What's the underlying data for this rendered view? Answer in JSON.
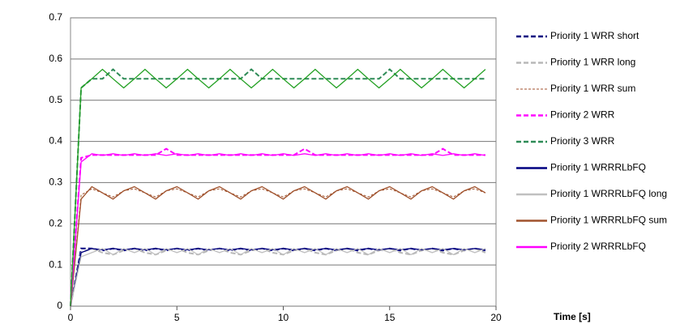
{
  "chart_data": {
    "type": "line",
    "x_label": "Time [s]",
    "x": [
      0,
      0.5,
      1,
      1.5,
      2,
      2.5,
      3,
      3.5,
      4,
      4.5,
      5,
      5.5,
      6,
      6.5,
      7,
      7.5,
      8,
      8.5,
      9,
      9.5,
      10,
      10.5,
      11,
      11.5,
      12,
      12.5,
      13,
      13.5,
      14,
      14.5,
      15,
      15.5,
      16,
      16.5,
      17,
      17.5,
      18,
      18.5,
      19,
      19.5
    ],
    "xlim": [
      0,
      20
    ],
    "xticks": [
      0,
      5,
      10,
      15,
      20
    ],
    "ylim": [
      0,
      0.7
    ],
    "yticks": [
      0,
      0.1,
      0.2,
      0.3,
      0.4,
      0.5,
      0.6,
      0.7
    ],
    "grid": true,
    "legend": "right",
    "series": [
      {
        "name": "Priority 1 WRR short",
        "color": "#000080",
        "dash": true,
        "values": [
          0,
          0.14,
          0.14,
          0.135,
          0.14,
          0.135,
          0.14,
          0.135,
          0.14,
          0.135,
          0.14,
          0.135,
          0.14,
          0.135,
          0.14,
          0.135,
          0.14,
          0.135,
          0.14,
          0.135,
          0.14,
          0.135,
          0.14,
          0.135,
          0.14,
          0.135,
          0.14,
          0.135,
          0.14,
          0.135,
          0.14,
          0.135,
          0.14,
          0.135,
          0.14,
          0.135,
          0.14,
          0.135,
          0.14,
          0.135
        ]
      },
      {
        "name": "Priority 1 WRR long",
        "color": "#b8b8b8",
        "dash": true,
        "values": [
          0,
          0.13,
          0.14,
          0.13,
          0.125,
          0.135,
          0.14,
          0.13,
          0.125,
          0.135,
          0.14,
          0.13,
          0.125,
          0.135,
          0.14,
          0.13,
          0.125,
          0.135,
          0.14,
          0.13,
          0.125,
          0.135,
          0.14,
          0.13,
          0.125,
          0.135,
          0.14,
          0.13,
          0.125,
          0.135,
          0.14,
          0.13,
          0.125,
          0.135,
          0.14,
          0.13,
          0.125,
          0.135,
          0.14,
          0.13
        ]
      },
      {
        "name": "Priority 1 WRR sum",
        "color": "#a0522d",
        "dash": true,
        "thin": true,
        "values": [
          0,
          0.27,
          0.285,
          0.275,
          0.265,
          0.28,
          0.285,
          0.275,
          0.265,
          0.28,
          0.285,
          0.275,
          0.265,
          0.28,
          0.285,
          0.275,
          0.265,
          0.28,
          0.285,
          0.275,
          0.265,
          0.28,
          0.285,
          0.275,
          0.265,
          0.28,
          0.285,
          0.275,
          0.265,
          0.28,
          0.285,
          0.275,
          0.265,
          0.28,
          0.285,
          0.275,
          0.265,
          0.28,
          0.285,
          0.275
        ]
      },
      {
        "name": "Priority 2 WRR",
        "color": "#ff00ff",
        "dash": true,
        "values": [
          0,
          0.36,
          0.367,
          0.367,
          0.367,
          0.367,
          0.367,
          0.367,
          0.367,
          0.382,
          0.367,
          0.367,
          0.367,
          0.367,
          0.367,
          0.367,
          0.367,
          0.367,
          0.367,
          0.367,
          0.367,
          0.367,
          0.382,
          0.367,
          0.367,
          0.367,
          0.367,
          0.367,
          0.367,
          0.367,
          0.367,
          0.367,
          0.367,
          0.367,
          0.367,
          0.382,
          0.367,
          0.367,
          0.367,
          0.367
        ]
      },
      {
        "name": "Priority 3 WRR",
        "color": "#2e8b57",
        "dash": true,
        "values": [
          0,
          0.53,
          0.552,
          0.552,
          0.575,
          0.552,
          0.552,
          0.552,
          0.552,
          0.552,
          0.552,
          0.552,
          0.552,
          0.552,
          0.552,
          0.552,
          0.552,
          0.575,
          0.552,
          0.552,
          0.552,
          0.552,
          0.552,
          0.552,
          0.552,
          0.552,
          0.552,
          0.552,
          0.552,
          0.552,
          0.575,
          0.552,
          0.552,
          0.552,
          0.552,
          0.552,
          0.552,
          0.552,
          0.552,
          0.552
        ]
      },
      {
        "name": "Priority 1 WRRRLbFQ",
        "color": "#000080",
        "dash": false,
        "values": [
          0,
          0.13,
          0.14,
          0.137,
          0.14,
          0.137,
          0.14,
          0.137,
          0.14,
          0.137,
          0.14,
          0.137,
          0.14,
          0.137,
          0.14,
          0.137,
          0.14,
          0.137,
          0.14,
          0.137,
          0.14,
          0.137,
          0.14,
          0.137,
          0.14,
          0.137,
          0.14,
          0.137,
          0.14,
          0.137,
          0.14,
          0.137,
          0.14,
          0.137,
          0.14,
          0.137,
          0.14,
          0.137,
          0.14,
          0.137
        ]
      },
      {
        "name": "Priority 1 WRRRLbFQ long",
        "color": "#c0c0c0",
        "dash": false,
        "values": [
          0,
          0.12,
          0.13,
          0.14,
          0.125,
          0.14,
          0.13,
          0.14,
          0.125,
          0.14,
          0.13,
          0.14,
          0.125,
          0.14,
          0.13,
          0.14,
          0.125,
          0.14,
          0.13,
          0.14,
          0.125,
          0.14,
          0.13,
          0.14,
          0.125,
          0.14,
          0.13,
          0.14,
          0.125,
          0.14,
          0.13,
          0.14,
          0.125,
          0.14,
          0.13,
          0.14,
          0.125,
          0.14,
          0.13,
          0.14
        ]
      },
      {
        "name": "Priority 1 WRRRLbFQ sum",
        "color": "#a0522d",
        "dash": false,
        "values": [
          0,
          0.26,
          0.29,
          0.275,
          0.26,
          0.28,
          0.29,
          0.275,
          0.26,
          0.28,
          0.29,
          0.275,
          0.26,
          0.28,
          0.29,
          0.275,
          0.26,
          0.28,
          0.29,
          0.275,
          0.26,
          0.28,
          0.29,
          0.275,
          0.26,
          0.28,
          0.29,
          0.275,
          0.26,
          0.28,
          0.29,
          0.275,
          0.26,
          0.28,
          0.29,
          0.275,
          0.26,
          0.28,
          0.29,
          0.275
        ]
      },
      {
        "name": "Priority 2 WRRRLbFQ",
        "color": "#ff00ff",
        "dash": false,
        "values": [
          0,
          0.35,
          0.37,
          0.366,
          0.37,
          0.366,
          0.37,
          0.366,
          0.37,
          0.366,
          0.37,
          0.366,
          0.37,
          0.366,
          0.37,
          0.366,
          0.37,
          0.366,
          0.37,
          0.366,
          0.37,
          0.366,
          0.37,
          0.366,
          0.37,
          0.366,
          0.37,
          0.366,
          0.37,
          0.366,
          0.37,
          0.366,
          0.37,
          0.366,
          0.37,
          0.366,
          0.37,
          0.366,
          0.37,
          0.366
        ]
      },
      {
        "color": "#22a022",
        "dash": false,
        "values": [
          0,
          0.53,
          0.552,
          0.575,
          0.552,
          0.53,
          0.552,
          0.575,
          0.552,
          0.53,
          0.552,
          0.575,
          0.552,
          0.53,
          0.552,
          0.575,
          0.552,
          0.53,
          0.552,
          0.575,
          0.552,
          0.53,
          0.552,
          0.575,
          0.552,
          0.53,
          0.552,
          0.575,
          0.552,
          0.53,
          0.552,
          0.575,
          0.552,
          0.53,
          0.552,
          0.575,
          0.552,
          0.53,
          0.552,
          0.575
        ]
      }
    ]
  }
}
